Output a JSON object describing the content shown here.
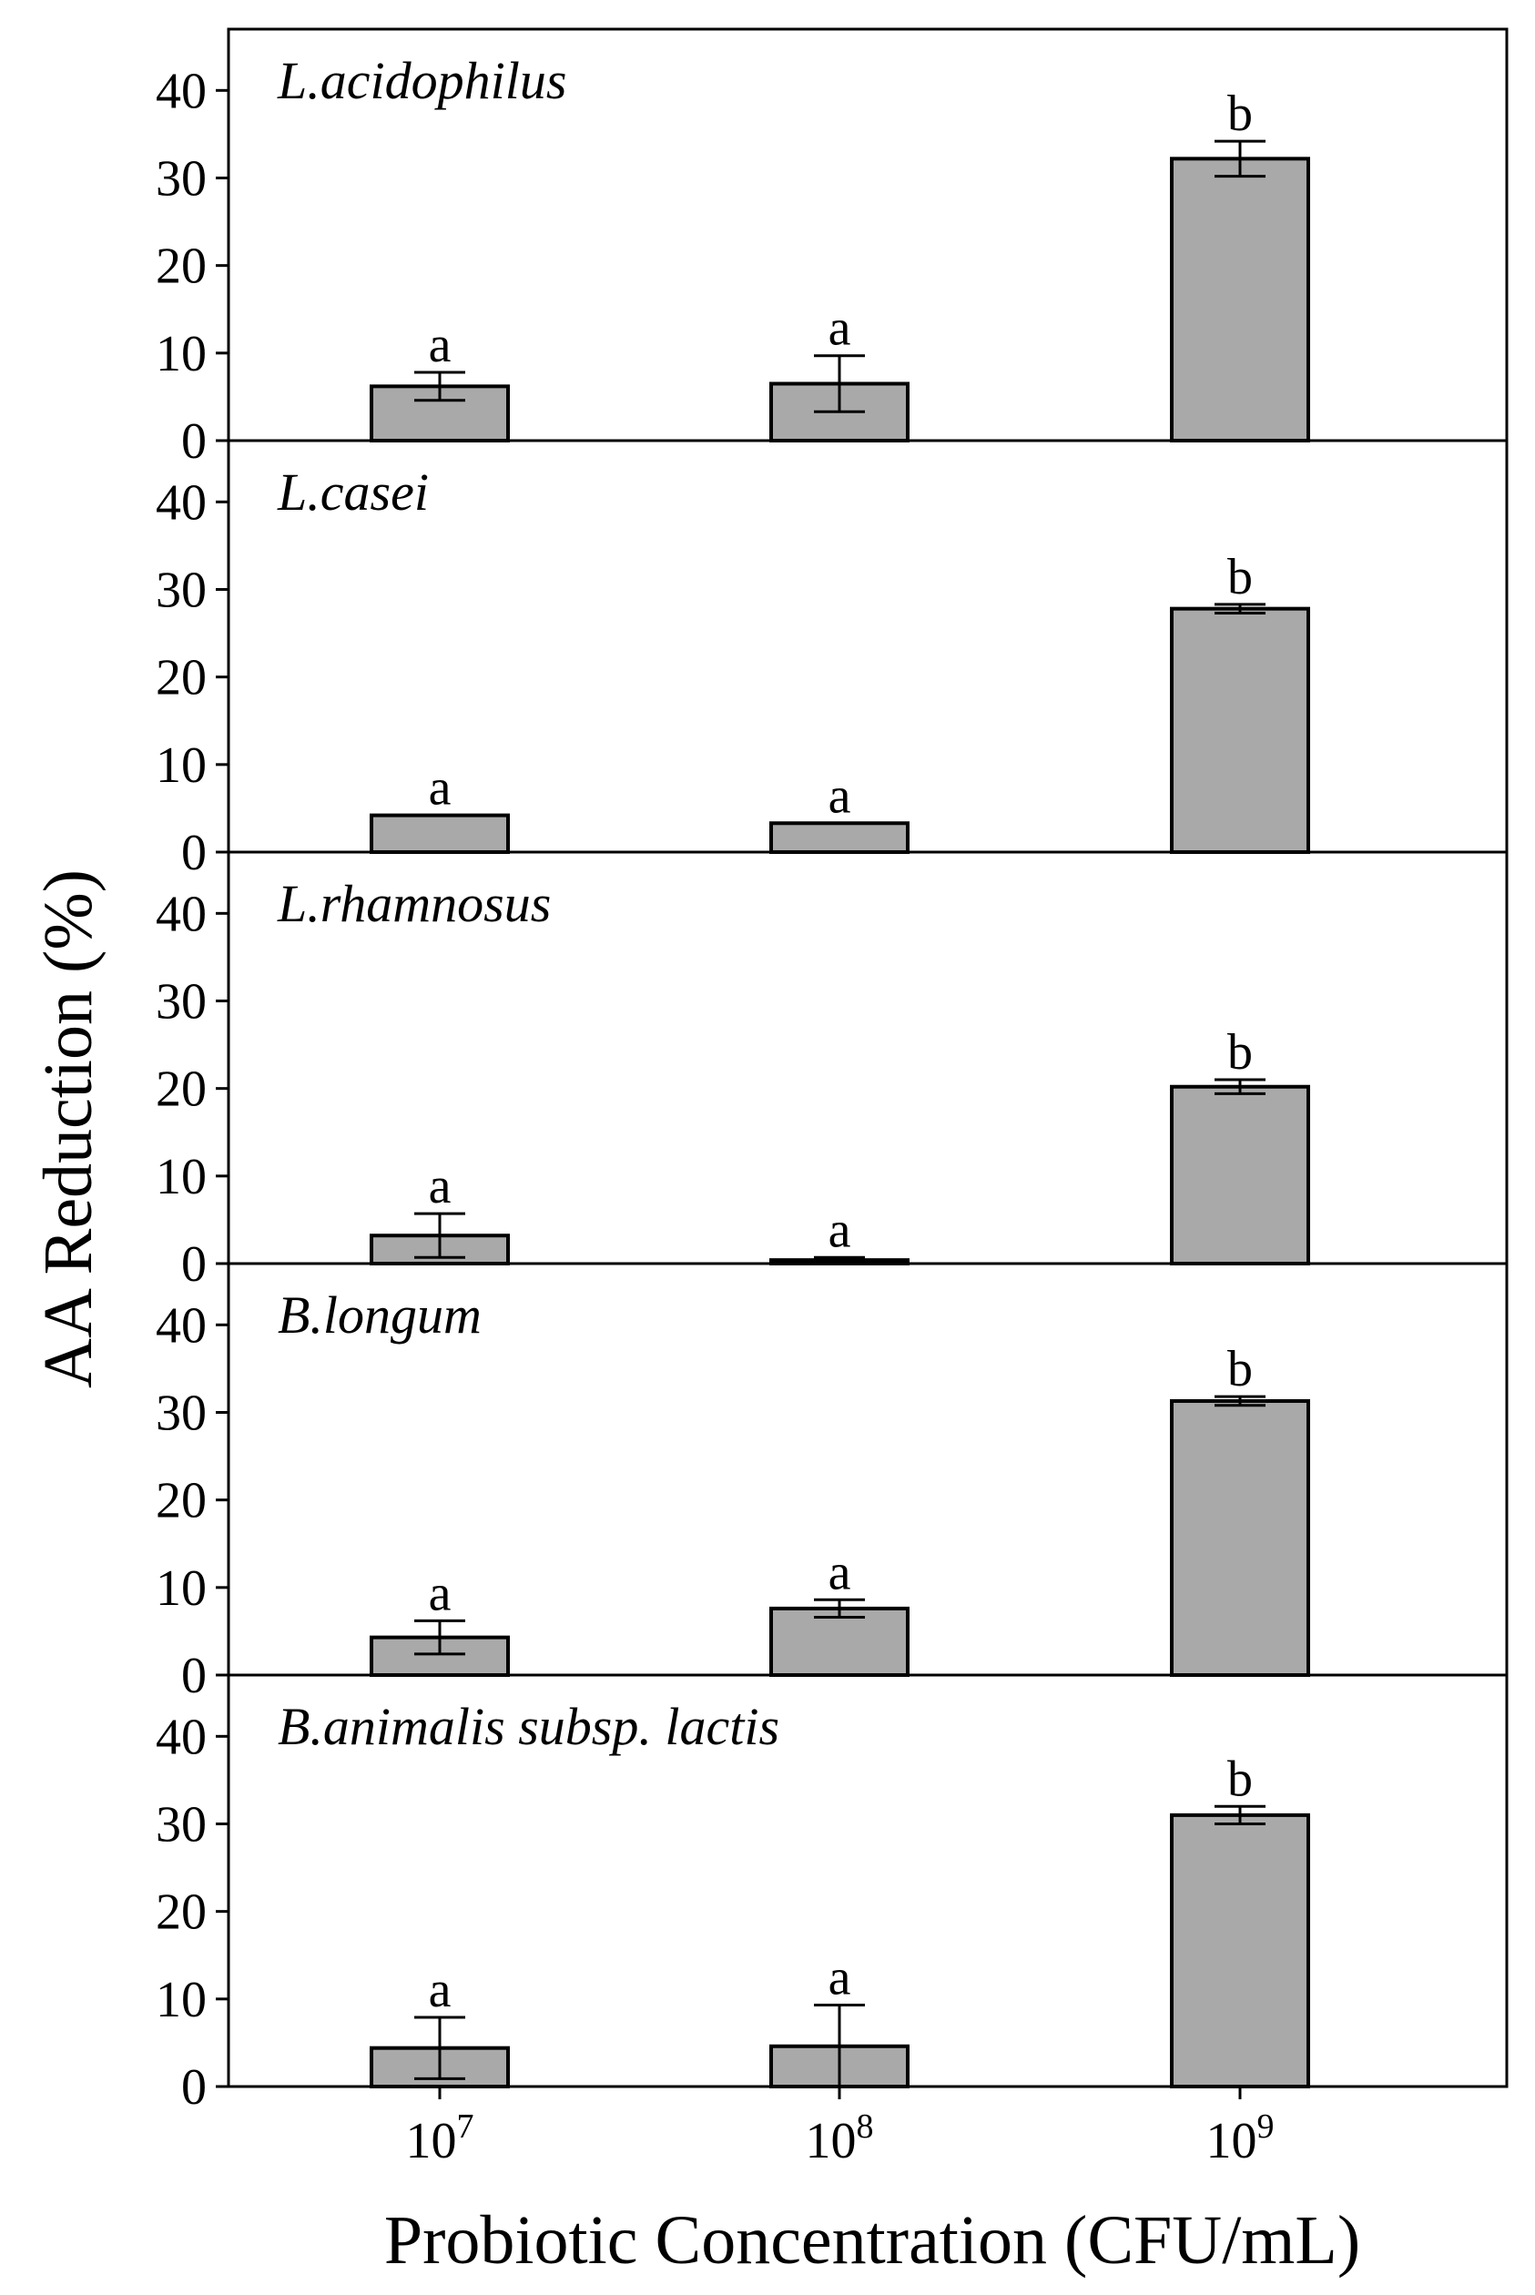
{
  "chart_data": {
    "type": "bar",
    "title": "",
    "xlabel": "Probiotic Concentration (CFU/mL)",
    "ylabel": "AA Reduction (%)",
    "ylim": [
      0,
      47
    ],
    "yticks": [
      "0",
      "10",
      "20",
      "30",
      "40"
    ],
    "categories": [
      {
        "base": "10",
        "exp": "7"
      },
      {
        "base": "10",
        "exp": "8"
      },
      {
        "base": "10",
        "exp": "9"
      }
    ],
    "panels": [
      {
        "name": "L.acidophilus",
        "values": [
          6.2,
          6.5,
          32.2
        ],
        "errors": [
          1.6,
          3.2,
          2.0
        ],
        "labels": [
          "a",
          "a",
          "b"
        ]
      },
      {
        "name": "L.casei",
        "values": [
          4.2,
          3.3,
          27.8
        ],
        "errors": [
          0.0,
          0.0,
          0.5
        ],
        "labels": [
          "a",
          "a",
          "b"
        ]
      },
      {
        "name": "L.rhamnosus",
        "values": [
          3.2,
          0.4,
          20.2
        ],
        "errors": [
          2.5,
          0.3,
          0.8
        ],
        "labels": [
          "a",
          "a",
          "b"
        ]
      },
      {
        "name": "B.longum",
        "values": [
          4.3,
          7.6,
          31.3
        ],
        "errors": [
          1.9,
          1.0,
          0.5
        ],
        "labels": [
          "a",
          "a",
          "b"
        ]
      },
      {
        "name": "B.animalis subsp. lactis",
        "values": [
          4.4,
          4.6,
          31.0
        ],
        "errors": [
          3.5,
          4.7,
          1.0
        ],
        "labels": [
          "a",
          "a",
          "b"
        ]
      }
    ],
    "colors": {
      "bar_fill": "#a9a9a9",
      "bar_stroke": "#000000",
      "axis": "#000000"
    }
  }
}
